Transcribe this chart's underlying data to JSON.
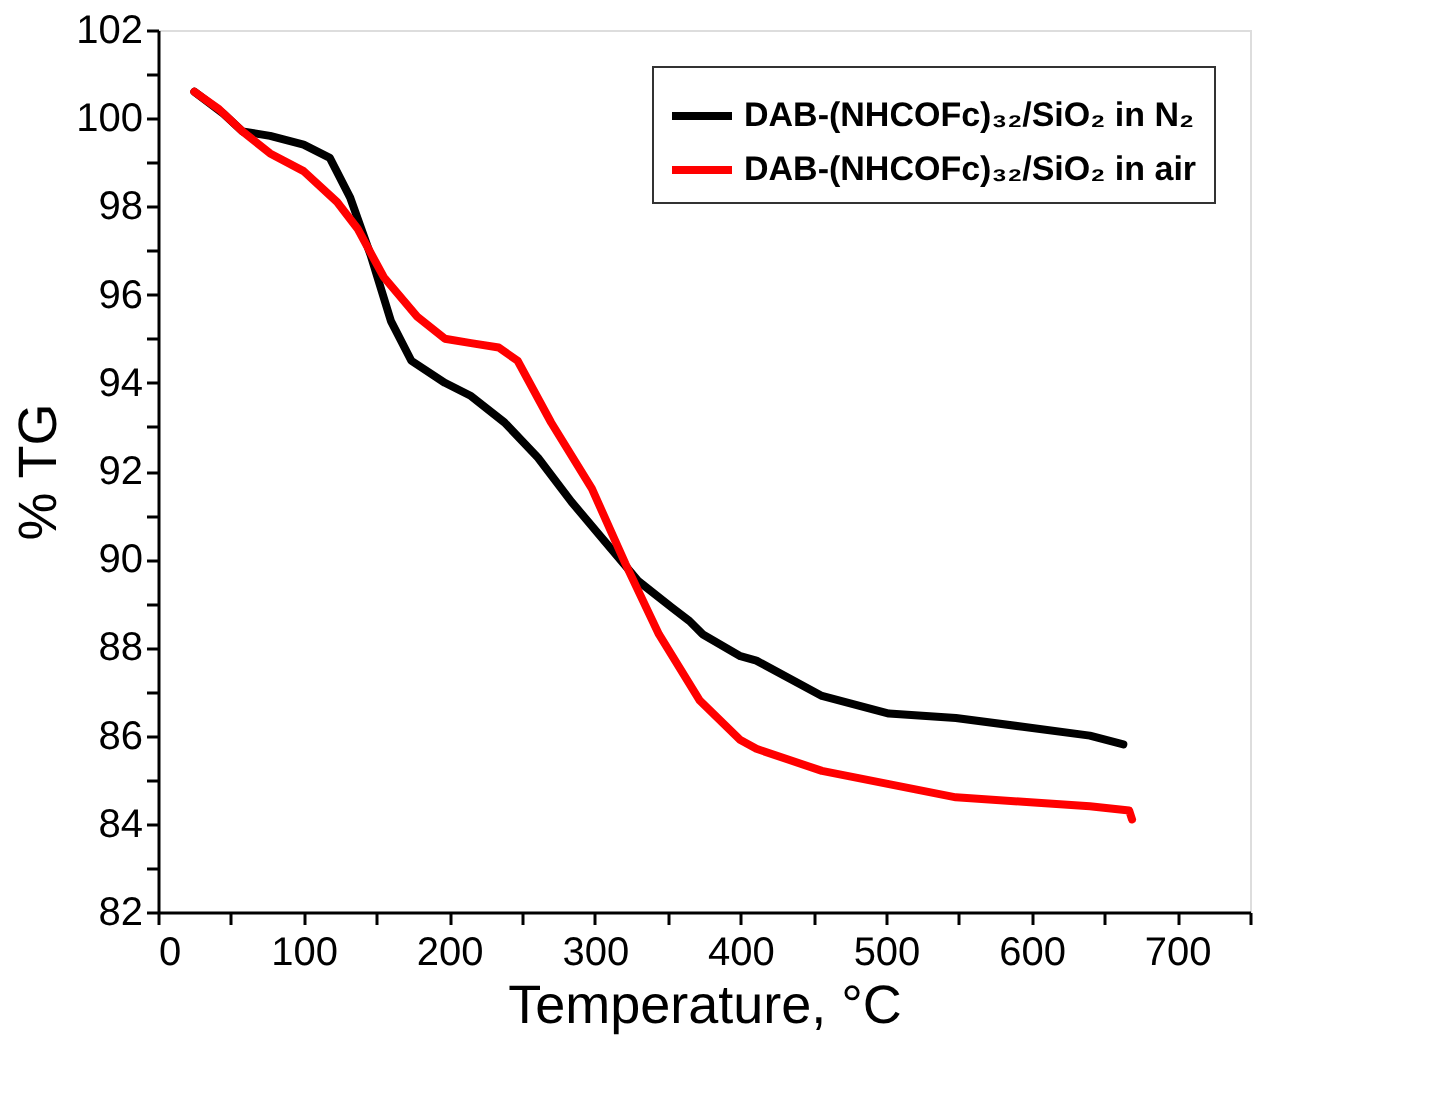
{
  "chart_data": {
    "type": "line",
    "xlabel": "Temperature, °C",
    "ylabel": "% TG",
    "xlim": [
      0,
      750
    ],
    "ylim": [
      82,
      102
    ],
    "xticks": [
      0,
      {
        "value": 50,
        "label": null
      },
      100,
      {
        "value": 150,
        "label": null
      },
      200,
      {
        "value": 250,
        "label": null
      },
      300,
      {
        "value": 350,
        "label": null
      },
      400,
      {
        "value": 450,
        "label": null
      },
      500,
      {
        "value": 550,
        "label": null
      },
      600,
      {
        "value": 650,
        "label": null
      },
      700,
      {
        "value": 750,
        "label": null
      }
    ],
    "yticks": [
      82,
      {
        "value": 83,
        "label": null
      },
      84,
      {
        "value": 85,
        "label": null
      },
      86,
      {
        "value": 87,
        "label": null
      },
      88,
      {
        "value": 89,
        "label": null
      },
      90,
      {
        "value": 91,
        "label": null
      },
      92,
      {
        "value": 93,
        "label": null
      },
      94,
      {
        "value": 95,
        "label": null
      },
      96,
      {
        "value": 97,
        "label": null
      },
      98,
      {
        "value": 99,
        "label": null
      },
      100,
      {
        "value": 101,
        "label": null
      },
      102
    ],
    "grid": false,
    "legend": "top right",
    "line_style": "solid",
    "marker": "none",
    "series": [
      {
        "name": "DAB-(NHCOFc)₃₂/SiO₂ in N₂",
        "color": "#000000",
        "x": [
          25,
          45,
          58,
          77,
          100,
          118,
          132,
          146,
          160,
          174,
          197,
          215,
          238,
          261,
          284,
          307,
          330,
          353,
          365,
          374,
          400,
          411,
          456,
          502,
          548,
          594,
          640,
          663
        ],
        "values": [
          100.6,
          100.1,
          99.7,
          99.6,
          99.4,
          99.1,
          98.2,
          96.9,
          95.4,
          94.5,
          94.0,
          93.7,
          93.1,
          92.3,
          91.3,
          90.4,
          89.5,
          88.9,
          88.6,
          88.3,
          87.8,
          87.7,
          86.9,
          86.5,
          86.4,
          86.2,
          86.0,
          85.8
        ]
      },
      {
        "name": "DAB-(NHCOFc)₃₂/SiO₂ in air",
        "color": "#ff0000",
        "x": [
          25,
          42,
          58,
          77,
          100,
          123,
          137,
          155,
          178,
          197,
          215,
          234,
          247,
          270,
          298,
          321,
          344,
          372,
          400,
          411,
          456,
          502,
          548,
          594,
          640,
          667,
          669
        ],
        "values": [
          100.6,
          100.2,
          99.7,
          99.2,
          98.8,
          98.1,
          97.5,
          96.4,
          95.5,
          95.0,
          94.9,
          94.8,
          94.5,
          93.1,
          91.6,
          89.9,
          88.3,
          86.8,
          85.9,
          85.7,
          85.2,
          84.9,
          84.6,
          84.5,
          84.4,
          84.3,
          84.1
        ]
      }
    ]
  }
}
